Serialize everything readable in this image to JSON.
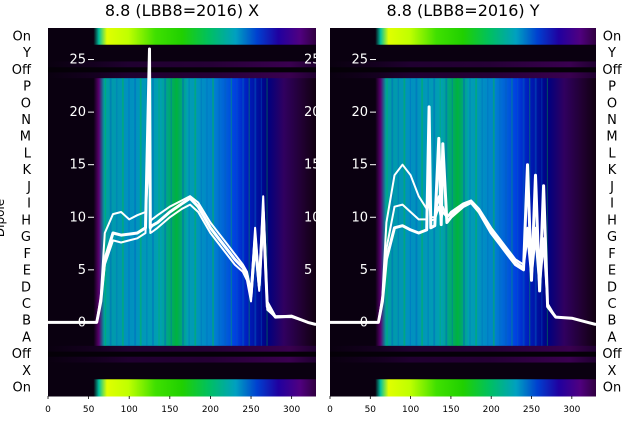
{
  "chart_data": [
    {
      "type": "heatmap",
      "title": "8.8 (LBB8=2016) X",
      "ylabel": "Dipole",
      "xlim": [
        0,
        330
      ],
      "x_ticks": [
        0,
        50,
        100,
        150,
        200,
        250,
        300
      ],
      "overlay_ylim": [
        -7,
        28
      ],
      "overlay_ticks": [
        0,
        5,
        10,
        15,
        20,
        25
      ],
      "rows": [
        "On",
        "Y",
        "Off",
        "P",
        "O",
        "N",
        "M",
        "L",
        "K",
        "J",
        "I",
        "H",
        "G",
        "F",
        "E",
        "D",
        "C",
        "B",
        "A",
        "Off",
        "X",
        "On"
      ],
      "overlay_series": [
        {
          "x": [
            0,
            60,
            65,
            70,
            80,
            90,
            100,
            110,
            120,
            125,
            126,
            128,
            135,
            150,
            165,
            175,
            185,
            200,
            210,
            220,
            230,
            240,
            245,
            250,
            255,
            260,
            265,
            270,
            280,
            300,
            320,
            330
          ],
          "y": [
            0,
            0,
            2,
            6,
            8.5,
            8.3,
            8.4,
            8.5,
            9.0,
            26,
            9.0,
            9.2,
            9.5,
            10.5,
            11.3,
            11.8,
            11.0,
            9.0,
            8.0,
            7.0,
            6.0,
            5.2,
            4.5,
            2.5,
            8,
            3.5,
            10.5,
            1.5,
            0.5,
            0.6,
            0,
            -0.2
          ]
        },
        {
          "x": [
            0,
            60,
            65,
            70,
            80,
            90,
            100,
            110,
            120,
            125,
            126,
            128,
            135,
            150,
            165,
            175,
            185,
            200,
            210,
            220,
            230,
            240,
            245,
            250,
            255,
            260,
            265,
            270,
            280,
            300,
            320,
            330
          ],
          "y": [
            0,
            0,
            2,
            5.5,
            7.8,
            7.6,
            7.8,
            8.0,
            8.5,
            21,
            8.5,
            8.6,
            9.0,
            10.0,
            10.8,
            11.2,
            10.5,
            8.5,
            7.5,
            6.5,
            5.5,
            4.8,
            4.0,
            2.0,
            7,
            3.0,
            9.5,
            1.2,
            0.5,
            0.5,
            0,
            -0.2
          ]
        },
        {
          "x": [
            0,
            60,
            65,
            70,
            80,
            90,
            100,
            110,
            120,
            125,
            126,
            128,
            135,
            150,
            165,
            175,
            185,
            200,
            210,
            220,
            230,
            240,
            245,
            250,
            255,
            260,
            265,
            270,
            280,
            300,
            320,
            330
          ],
          "y": [
            0,
            0,
            2.5,
            8.5,
            10.3,
            10.5,
            9.8,
            10.2,
            10.5,
            16,
            9.6,
            9.8,
            10.2,
            11.0,
            11.6,
            12.0,
            11.4,
            9.5,
            8.5,
            7.5,
            6.5,
            5.5,
            4.8,
            3.0,
            9,
            4.0,
            12,
            2.0,
            0.6,
            0.6,
            0,
            -0.2
          ]
        }
      ]
    },
    {
      "type": "heatmap",
      "title": "8.8 (LBB8=2016) Y",
      "ylabel": "",
      "xlim": [
        0,
        330
      ],
      "x_ticks": [
        0,
        50,
        100,
        150,
        200,
        250,
        300
      ],
      "overlay_ylim": [
        -7,
        28
      ],
      "overlay_ticks": [
        0,
        5,
        10,
        15,
        20,
        25
      ],
      "rows": [
        "On",
        "Y",
        "Off",
        "P",
        "O",
        "N",
        "M",
        "L",
        "K",
        "J",
        "I",
        "H",
        "G",
        "F",
        "E",
        "D",
        "C",
        "B",
        "A",
        "Off",
        "X",
        "On"
      ],
      "overlay_series": [
        {
          "x": [
            0,
            60,
            65,
            70,
            80,
            90,
            100,
            110,
            120,
            123,
            125,
            130,
            135,
            138,
            140,
            145,
            150,
            165,
            175,
            185,
            200,
            210,
            220,
            230,
            240,
            245,
            250,
            255,
            260,
            265,
            270,
            280,
            300,
            320,
            330
          ],
          "y": [
            0,
            0,
            2,
            6,
            9.0,
            9.2,
            8.8,
            8.5,
            8.8,
            20.5,
            9.0,
            9.2,
            17.5,
            9.3,
            17.0,
            9.5,
            10.0,
            11.0,
            11.4,
            10.5,
            8.5,
            7.5,
            6.5,
            5.5,
            5.0,
            15,
            4.0,
            14,
            3.0,
            13,
            1.5,
            0.5,
            0.4,
            0,
            -0.2
          ]
        },
        {
          "x": [
            0,
            60,
            65,
            70,
            80,
            90,
            100,
            110,
            120,
            123,
            125,
            130,
            135,
            138,
            140,
            145,
            150,
            165,
            175,
            185,
            200,
            210,
            220,
            230,
            240,
            245,
            250,
            255,
            260,
            265,
            270,
            280,
            300,
            320,
            330
          ],
          "y": [
            0,
            0,
            2.5,
            9.5,
            14.0,
            15.0,
            14.0,
            12.0,
            10.8,
            14,
            10.0,
            10.0,
            12,
            10.0,
            11,
            10.0,
            10.5,
            11.3,
            11.6,
            10.8,
            9.0,
            8.0,
            7.0,
            6.0,
            5.5,
            9,
            4.5,
            9,
            3.5,
            8,
            1.8,
            0.5,
            0.4,
            0,
            -0.2
          ]
        },
        {
          "x": [
            0,
            60,
            65,
            70,
            80,
            90,
            100,
            110,
            120,
            123,
            125,
            130,
            135,
            138,
            140,
            145,
            150,
            165,
            175,
            185,
            200,
            210,
            220,
            230,
            240,
            245,
            250,
            255,
            260,
            265,
            270,
            280,
            300,
            320,
            330
          ],
          "y": [
            0,
            0,
            2,
            7,
            11.0,
            11.2,
            10.5,
            9.8,
            9.8,
            12,
            9.7,
            9.8,
            11,
            9.8,
            10.5,
            10.0,
            10.3,
            11.2,
            11.5,
            10.6,
            8.8,
            7.8,
            6.8,
            5.8,
            5.2,
            8,
            4.2,
            8,
            3.2,
            7.5,
            1.6,
            0.5,
            0.4,
            0,
            -0.2
          ]
        }
      ]
    }
  ]
}
